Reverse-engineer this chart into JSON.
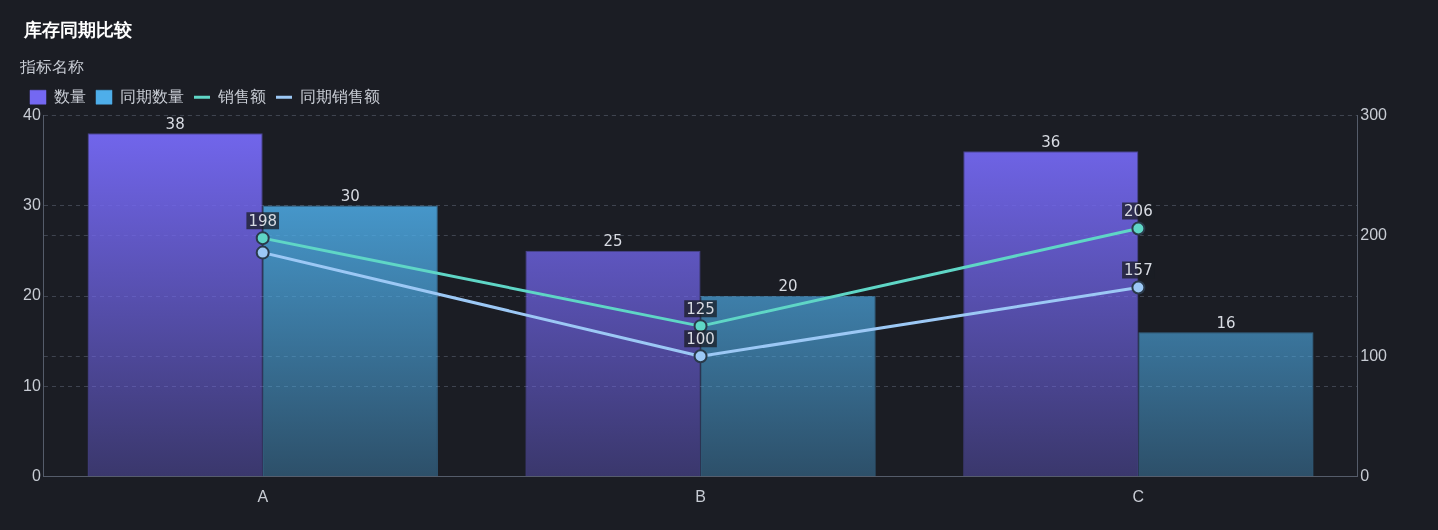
{
  "chart_data": {
    "type": "bar",
    "title": "库存同期比较",
    "legend_title": "指标名称",
    "categories": [
      "A",
      "B",
      "C"
    ],
    "series": [
      {
        "name": "数量",
        "color": "#7468f2",
        "values": [
          38,
          25,
          36
        ]
      },
      {
        "name": "同期数量",
        "color": "#4eaeea",
        "values": [
          30,
          20,
          16
        ]
      },
      {
        "name": "销售额",
        "type": "line",
        "axis": "y2",
        "color": "#5fd6c6",
        "values": [
          198,
          125,
          206
        ]
      },
      {
        "name": "同期销售额",
        "type": "line",
        "axis": "y2",
        "color": "#9cc8f5",
        "values": [
          186,
          100,
          157
        ],
        "value_labels": [
          null,
          "100",
          "157"
        ]
      }
    ],
    "ylim": [
      0,
      40
    ],
    "yticks": [
      0,
      10,
      20,
      30,
      40
    ],
    "y2lim": [
      0,
      300
    ],
    "y2ticks": [
      0,
      100,
      200,
      300
    ],
    "data_labels": true,
    "grid": "y",
    "legend": "top left",
    "marker": "circle",
    "line_style": "solid"
  }
}
